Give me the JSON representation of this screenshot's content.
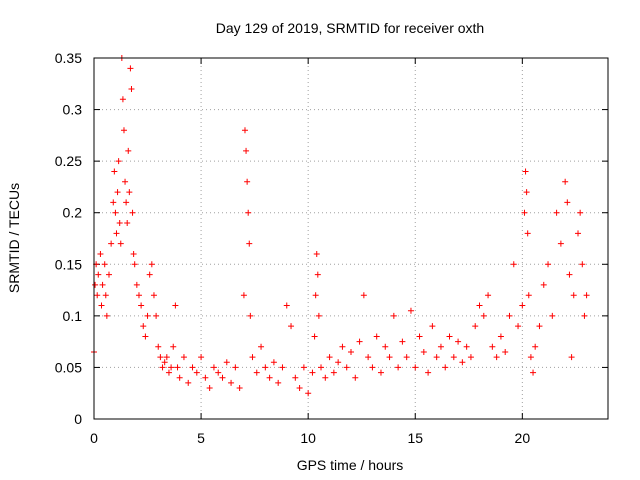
{
  "chart_data": {
    "type": "scatter",
    "title": "Day 129 of 2019, SRMTID for receiver oxth",
    "xlabel": "GPS time / hours",
    "ylabel": "SRMTID / TECUs",
    "xlim": [
      0,
      24
    ],
    "ylim": [
      0,
      0.35
    ],
    "x_ticks": [
      0,
      5,
      10,
      15,
      20
    ],
    "y_ticks": [
      0,
      0.05,
      0.1,
      0.15,
      0.2,
      0.25,
      0.3,
      0.35
    ],
    "x_tick_labels": [
      "0",
      "5",
      "10",
      "15",
      "20"
    ],
    "y_tick_labels": [
      "0",
      "0.05",
      "0.1",
      "0.15",
      "0.2",
      "0.25",
      "0.3",
      "0.35"
    ],
    "grid": true,
    "marker": "+",
    "color": "#ff0000",
    "series": [
      {
        "name": "SRMTID",
        "points": [
          [
            0.0,
            0.065
          ],
          [
            0.05,
            0.13
          ],
          [
            0.1,
            0.15
          ],
          [
            0.15,
            0.12
          ],
          [
            0.2,
            0.14
          ],
          [
            0.3,
            0.16
          ],
          [
            0.35,
            0.11
          ],
          [
            0.4,
            0.13
          ],
          [
            0.5,
            0.15
          ],
          [
            0.55,
            0.12
          ],
          [
            0.6,
            0.1
          ],
          [
            0.7,
            0.14
          ],
          [
            0.8,
            0.17
          ],
          [
            0.9,
            0.21
          ],
          [
            0.95,
            0.24
          ],
          [
            1.0,
            0.2
          ],
          [
            1.05,
            0.18
          ],
          [
            1.1,
            0.22
          ],
          [
            1.15,
            0.25
          ],
          [
            1.2,
            0.19
          ],
          [
            1.25,
            0.17
          ],
          [
            1.3,
            0.35
          ],
          [
            1.35,
            0.31
          ],
          [
            1.4,
            0.28
          ],
          [
            1.45,
            0.23
          ],
          [
            1.5,
            0.21
          ],
          [
            1.55,
            0.19
          ],
          [
            1.6,
            0.26
          ],
          [
            1.65,
            0.22
          ],
          [
            1.7,
            0.34
          ],
          [
            1.75,
            0.32
          ],
          [
            1.8,
            0.2
          ],
          [
            1.85,
            0.16
          ],
          [
            1.9,
            0.15
          ],
          [
            2.0,
            0.13
          ],
          [
            2.1,
            0.12
          ],
          [
            2.2,
            0.11
          ],
          [
            2.3,
            0.09
          ],
          [
            2.4,
            0.08
          ],
          [
            2.5,
            0.1
          ],
          [
            2.6,
            0.14
          ],
          [
            2.7,
            0.15
          ],
          [
            2.8,
            0.12
          ],
          [
            2.9,
            0.1
          ],
          [
            3.0,
            0.07
          ],
          [
            3.1,
            0.06
          ],
          [
            3.2,
            0.05
          ],
          [
            3.3,
            0.055
          ],
          [
            3.4,
            0.06
          ],
          [
            3.5,
            0.045
          ],
          [
            3.6,
            0.05
          ],
          [
            3.7,
            0.07
          ],
          [
            3.8,
            0.11
          ],
          [
            3.9,
            0.05
          ],
          [
            4.0,
            0.04
          ],
          [
            4.2,
            0.06
          ],
          [
            4.4,
            0.035
          ],
          [
            4.6,
            0.05
          ],
          [
            4.8,
            0.045
          ],
          [
            5.0,
            0.06
          ],
          [
            5.2,
            0.04
          ],
          [
            5.4,
            0.03
          ],
          [
            5.6,
            0.05
          ],
          [
            5.8,
            0.045
          ],
          [
            6.0,
            0.04
          ],
          [
            6.2,
            0.055
          ],
          [
            6.4,
            0.035
          ],
          [
            6.6,
            0.05
          ],
          [
            6.8,
            0.03
          ],
          [
            7.0,
            0.12
          ],
          [
            7.05,
            0.28
          ],
          [
            7.1,
            0.26
          ],
          [
            7.15,
            0.23
          ],
          [
            7.2,
            0.2
          ],
          [
            7.25,
            0.17
          ],
          [
            7.3,
            0.1
          ],
          [
            7.4,
            0.06
          ],
          [
            7.6,
            0.045
          ],
          [
            7.8,
            0.07
          ],
          [
            8.0,
            0.05
          ],
          [
            8.2,
            0.04
          ],
          [
            8.4,
            0.055
          ],
          [
            8.6,
            0.035
          ],
          [
            8.8,
            0.05
          ],
          [
            9.0,
            0.11
          ],
          [
            9.2,
            0.09
          ],
          [
            9.4,
            0.04
          ],
          [
            9.6,
            0.03
          ],
          [
            9.8,
            0.05
          ],
          [
            10.0,
            0.025
          ],
          [
            10.2,
            0.045
          ],
          [
            10.3,
            0.08
          ],
          [
            10.35,
            0.12
          ],
          [
            10.4,
            0.16
          ],
          [
            10.45,
            0.14
          ],
          [
            10.5,
            0.1
          ],
          [
            10.6,
            0.05
          ],
          [
            10.8,
            0.04
          ],
          [
            11.0,
            0.06
          ],
          [
            11.2,
            0.045
          ],
          [
            11.4,
            0.055
          ],
          [
            11.6,
            0.07
          ],
          [
            11.8,
            0.05
          ],
          [
            12.0,
            0.065
          ],
          [
            12.2,
            0.04
          ],
          [
            12.4,
            0.075
          ],
          [
            12.6,
            0.12
          ],
          [
            12.8,
            0.06
          ],
          [
            13.0,
            0.05
          ],
          [
            13.2,
            0.08
          ],
          [
            13.4,
            0.045
          ],
          [
            13.6,
            0.07
          ],
          [
            13.8,
            0.06
          ],
          [
            14.0,
            0.1
          ],
          [
            14.2,
            0.05
          ],
          [
            14.4,
            0.075
          ],
          [
            14.6,
            0.06
          ],
          [
            14.8,
            0.105
          ],
          [
            15.0,
            0.05
          ],
          [
            15.2,
            0.08
          ],
          [
            15.4,
            0.065
          ],
          [
            15.6,
            0.045
          ],
          [
            15.8,
            0.09
          ],
          [
            16.0,
            0.06
          ],
          [
            16.2,
            0.07
          ],
          [
            16.4,
            0.05
          ],
          [
            16.6,
            0.08
          ],
          [
            16.8,
            0.06
          ],
          [
            17.0,
            0.075
          ],
          [
            17.2,
            0.055
          ],
          [
            17.4,
            0.07
          ],
          [
            17.6,
            0.06
          ],
          [
            17.8,
            0.09
          ],
          [
            18.0,
            0.11
          ],
          [
            18.2,
            0.1
          ],
          [
            18.4,
            0.12
          ],
          [
            18.6,
            0.07
          ],
          [
            18.8,
            0.06
          ],
          [
            19.0,
            0.08
          ],
          [
            19.2,
            0.065
          ],
          [
            19.4,
            0.1
          ],
          [
            19.6,
            0.15
          ],
          [
            19.8,
            0.09
          ],
          [
            20.0,
            0.11
          ],
          [
            20.1,
            0.2
          ],
          [
            20.15,
            0.24
          ],
          [
            20.2,
            0.22
          ],
          [
            20.25,
            0.18
          ],
          [
            20.3,
            0.12
          ],
          [
            20.4,
            0.06
          ],
          [
            20.5,
            0.045
          ],
          [
            20.6,
            0.07
          ],
          [
            20.8,
            0.09
          ],
          [
            21.0,
            0.13
          ],
          [
            21.2,
            0.15
          ],
          [
            21.4,
            0.1
          ],
          [
            21.6,
            0.2
          ],
          [
            21.8,
            0.17
          ],
          [
            22.0,
            0.23
          ],
          [
            22.1,
            0.21
          ],
          [
            22.2,
            0.14
          ],
          [
            22.3,
            0.06
          ],
          [
            22.4,
            0.12
          ],
          [
            22.6,
            0.18
          ],
          [
            22.7,
            0.2
          ],
          [
            22.8,
            0.15
          ],
          [
            22.9,
            0.1
          ],
          [
            23.0,
            0.12
          ]
        ]
      }
    ]
  }
}
